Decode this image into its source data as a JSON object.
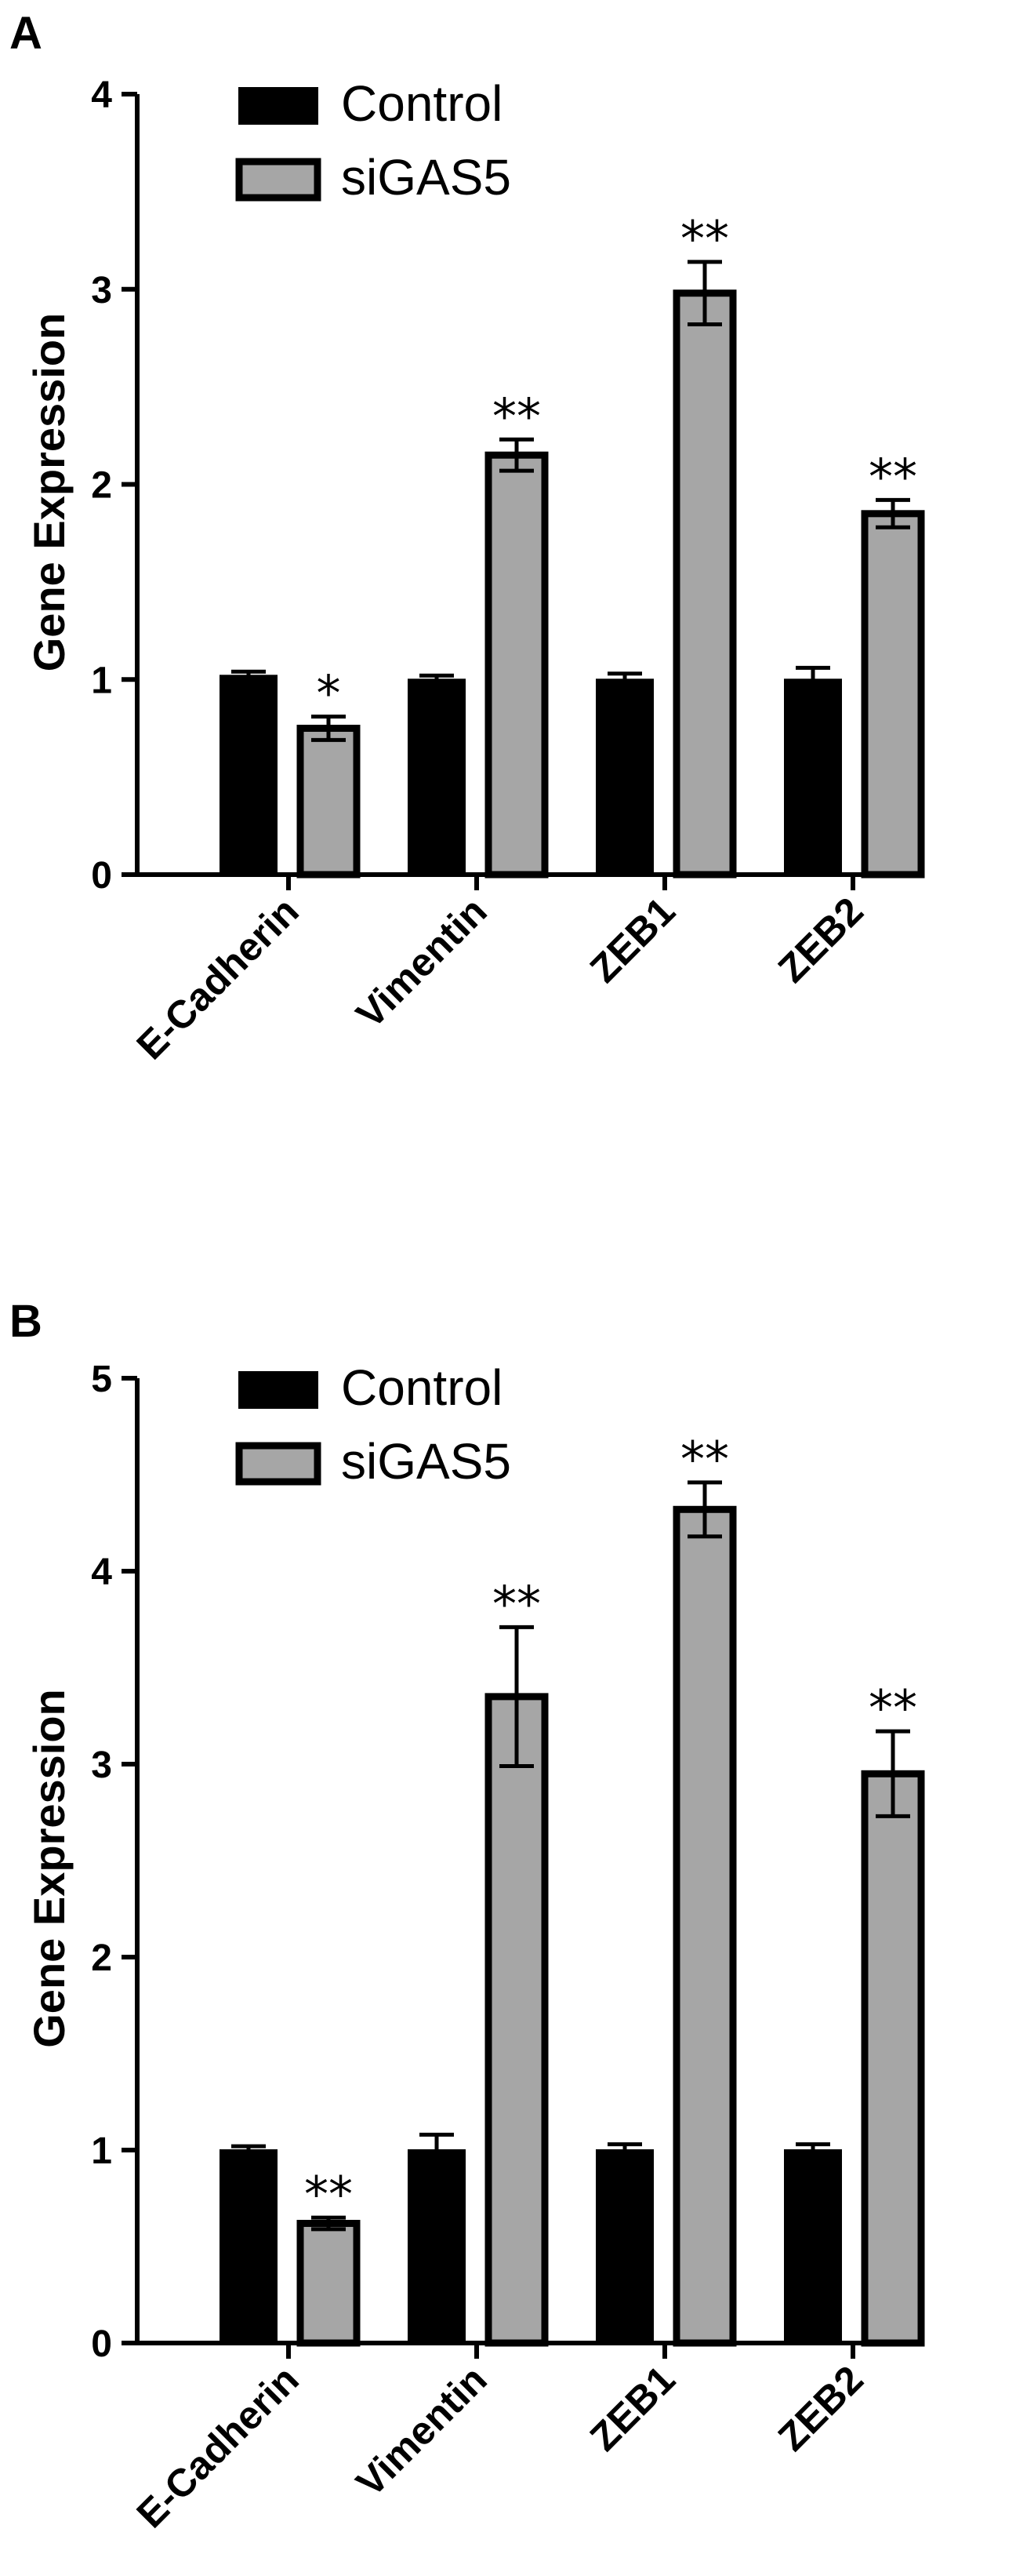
{
  "colors": {
    "control": "#000000",
    "sigas5": "#a6a6a6",
    "axis": "#000000",
    "background": "#ffffff"
  },
  "chart_data": [
    {
      "type": "bar",
      "panel_label": "A",
      "categories": [
        "E-Cadherin",
        "Vimentin",
        "ZEB1",
        "ZEB2"
      ],
      "series": [
        {
          "name": "Control",
          "values": [
            1.02,
            1.0,
            1.0,
            1.0
          ],
          "errors": [
            0.02,
            0.02,
            0.03,
            0.06
          ]
        },
        {
          "name": "siGAS5",
          "values": [
            0.75,
            2.15,
            2.98,
            1.85
          ],
          "errors": [
            0.06,
            0.08,
            0.16,
            0.07
          ]
        }
      ],
      "significance": [
        "*",
        "**",
        "**",
        "**"
      ],
      "ylabel": "Gene Expression",
      "xlabel": "",
      "ylim": [
        0,
        4
      ],
      "yticks": [
        "0",
        "1",
        "2",
        "3",
        "4"
      ],
      "legend": "top-left",
      "grid": false
    },
    {
      "type": "bar",
      "panel_label": "B",
      "categories": [
        "E-Cadherin",
        "Vimentin",
        "ZEB1",
        "ZEB2"
      ],
      "series": [
        {
          "name": "Control",
          "values": [
            1.0,
            1.0,
            1.0,
            1.0
          ],
          "errors": [
            0.02,
            0.08,
            0.03,
            0.03
          ]
        },
        {
          "name": "siGAS5",
          "values": [
            0.62,
            3.35,
            4.32,
            2.95
          ],
          "errors": [
            0.03,
            0.36,
            0.14,
            0.22
          ]
        }
      ],
      "significance": [
        "**",
        "**",
        "**",
        "**"
      ],
      "ylabel": "Gene Expression",
      "xlabel": "",
      "ylim": [
        0,
        5
      ],
      "yticks": [
        "0",
        "1",
        "2",
        "3",
        "4",
        "5"
      ],
      "legend": "top-left",
      "grid": false
    }
  ]
}
